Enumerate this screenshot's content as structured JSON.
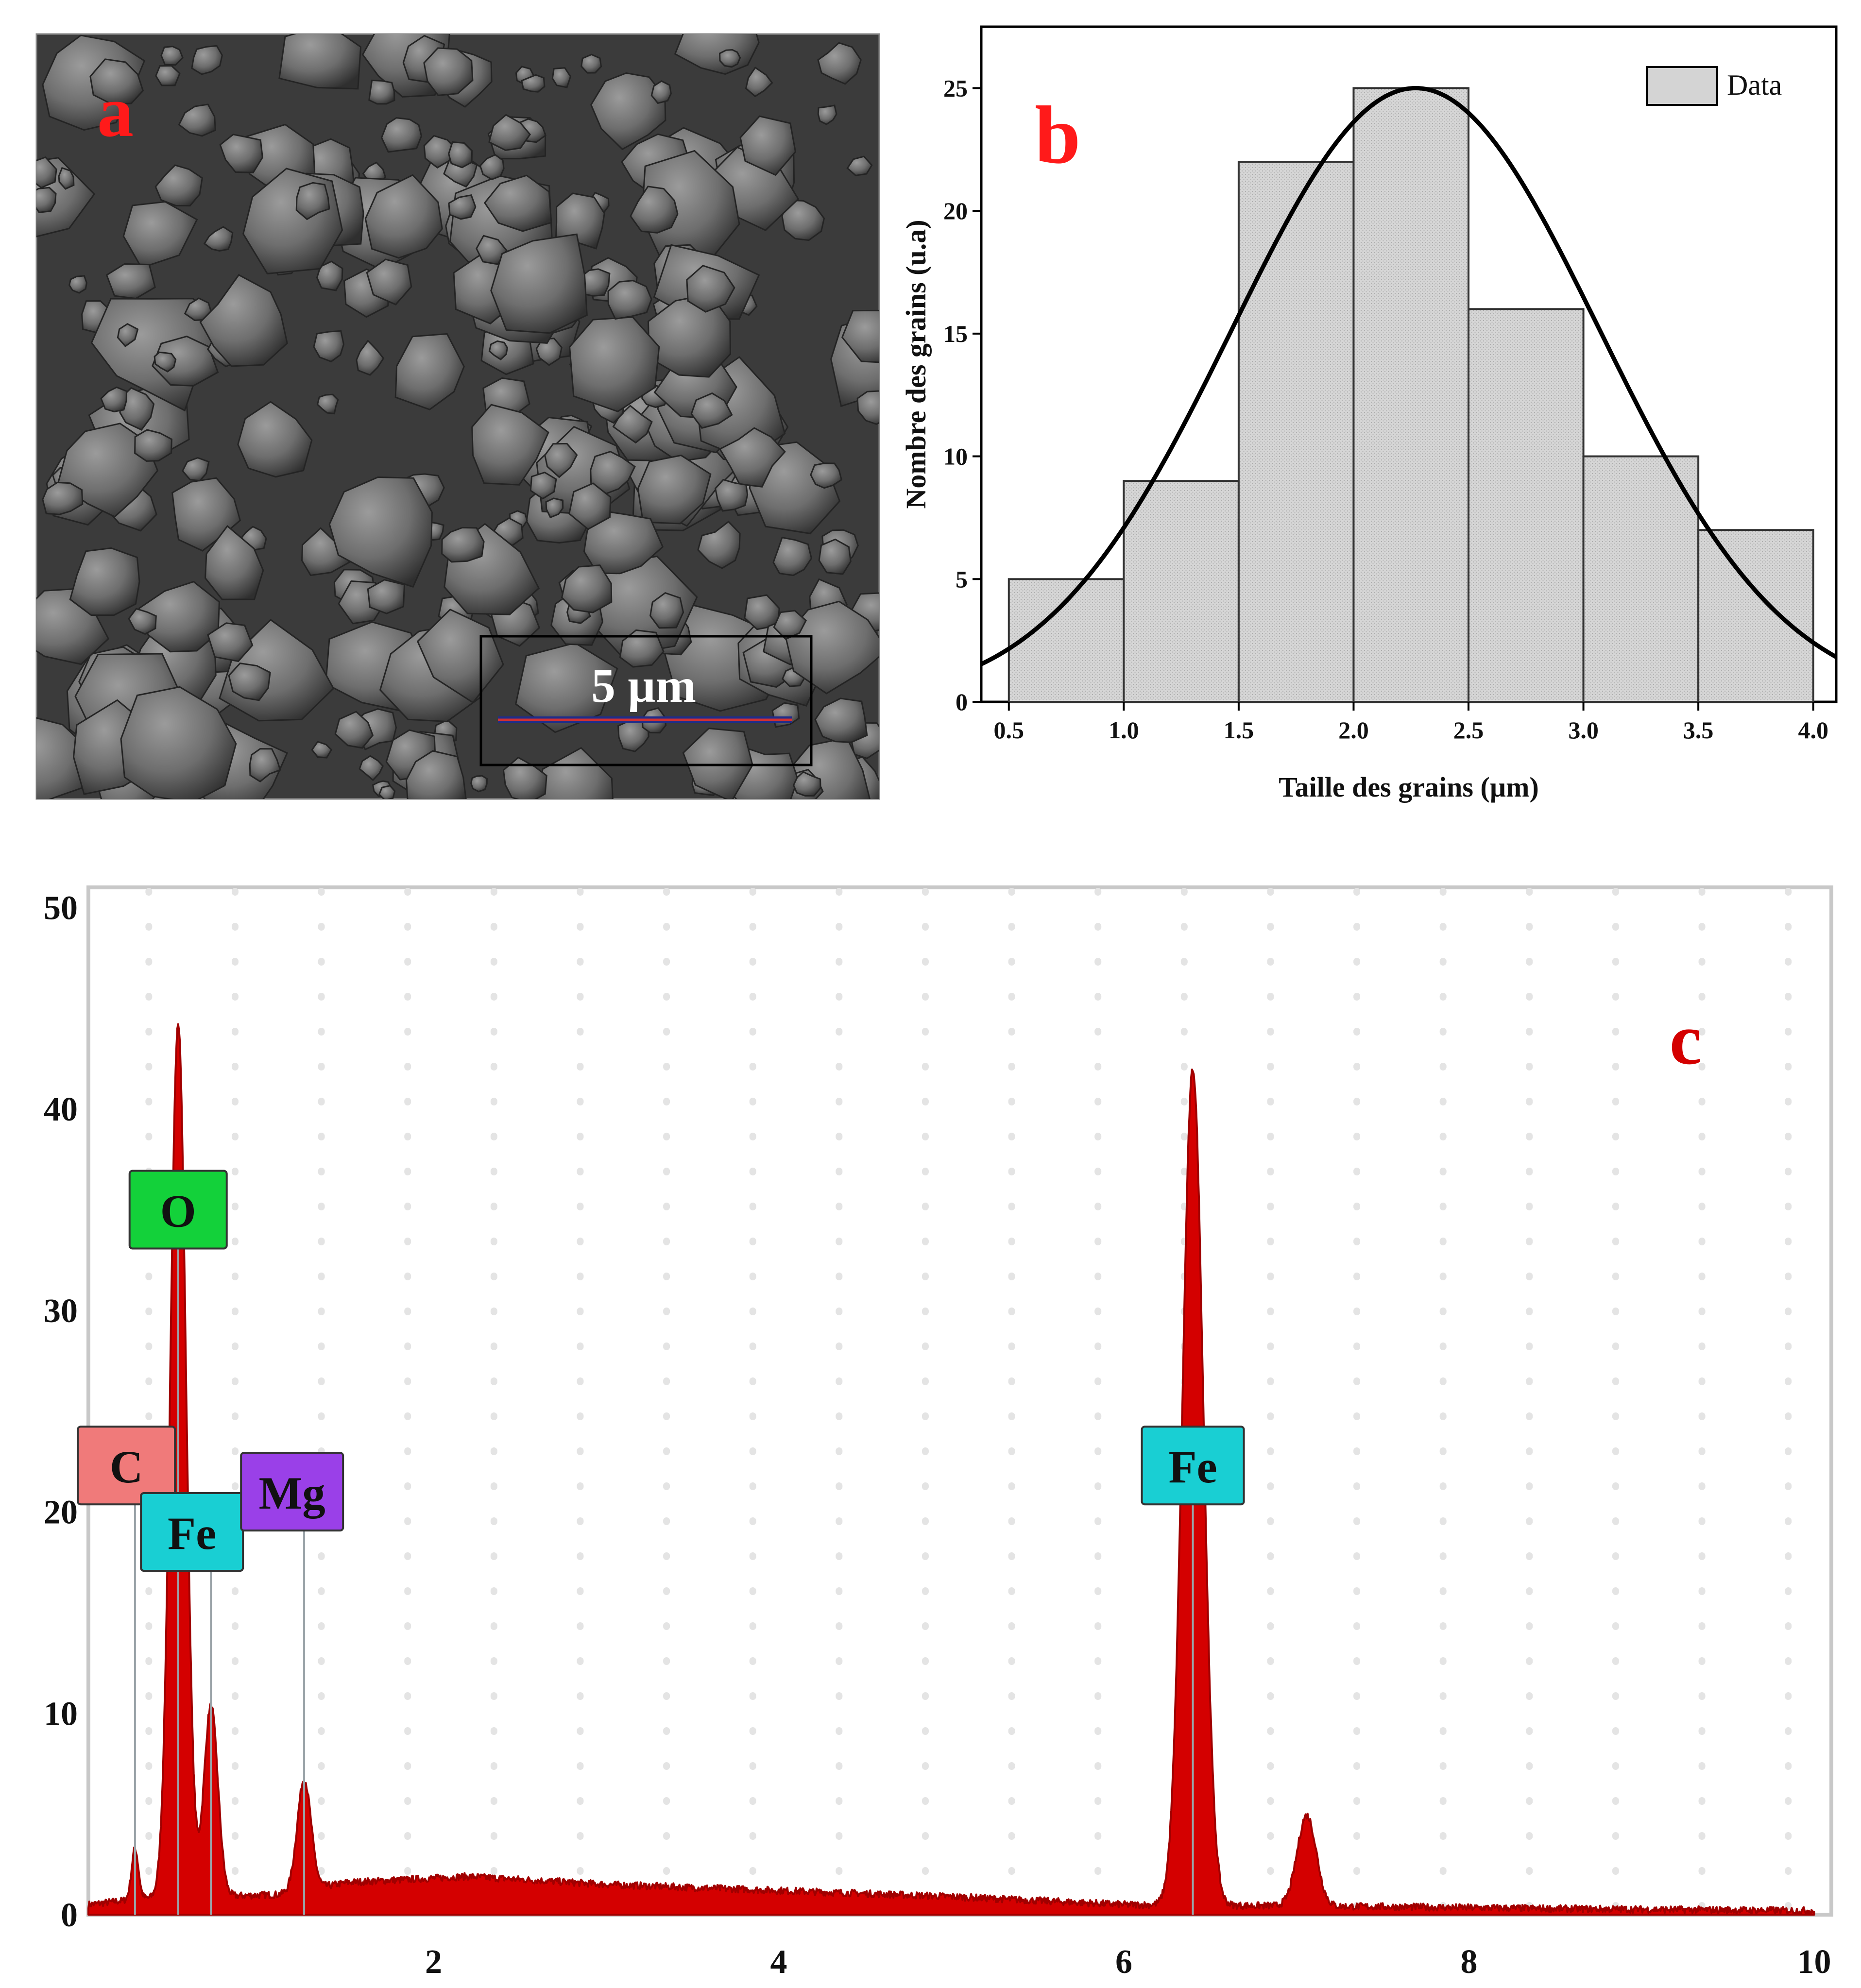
{
  "panels": {
    "a": {
      "label": "a",
      "scale_bar_text": "5 µm",
      "image_kind": "SEM micrograph of agglomerated grains",
      "colors": {
        "label": "#ff1a1a",
        "scale_bar_line": "#1f2d8a",
        "scale_bar_line2": "#d23030"
      }
    },
    "b": {
      "label": "b",
      "label_color": "#ff1a1a"
    },
    "c": {
      "label": "c",
      "label_color": "#d40000"
    }
  },
  "chart_data": [
    {
      "id": "grain-size-histogram",
      "type": "bar",
      "title": "",
      "xlabel": "Taille des grains (µm)",
      "ylabel": "Nombre des grains (u.a)",
      "bins": [
        [
          0.5,
          1.0
        ],
        [
          1.0,
          1.5
        ],
        [
          1.5,
          2.0
        ],
        [
          2.0,
          2.5
        ],
        [
          2.5,
          3.0
        ],
        [
          3.0,
          3.5
        ],
        [
          3.5,
          4.0
        ]
      ],
      "values": [
        5,
        9,
        22,
        25,
        16,
        10,
        7
      ],
      "xticks": [
        "0.5",
        "1.0",
        "1.5",
        "2.0",
        "2.5",
        "3.0",
        "3.5",
        "4.0"
      ],
      "yticks": [
        "0",
        "5",
        "10",
        "15",
        "20",
        "25"
      ],
      "xlim": [
        0.38,
        4.1
      ],
      "ylim": [
        0,
        27.5
      ],
      "legend": {
        "position": "top-right",
        "entries": [
          "Data"
        ]
      },
      "fit_curve": {
        "type": "gaussian",
        "mean": 2.27,
        "sigma": 0.8,
        "peak": 25
      },
      "grid": false,
      "colors": {
        "bar_fill": "#d4d4d4",
        "bar_stroke": "#333333",
        "curve": "#000000"
      }
    },
    {
      "id": "eds-spectrum",
      "type": "line",
      "title": "",
      "xlabel": "",
      "ylabel": "",
      "xlim": [
        0,
        10.1
      ],
      "ylim": [
        0,
        51
      ],
      "xticks": [
        "2",
        "4",
        "6",
        "8",
        "10"
      ],
      "yticks": [
        "0",
        "10",
        "20",
        "30",
        "40",
        "50"
      ],
      "grid": true,
      "baseline": [
        [
          0.0,
          0.5
        ],
        [
          0.3,
          0.8
        ],
        [
          1.1,
          1.0
        ],
        [
          1.5,
          1.6
        ],
        [
          2.2,
          1.9
        ],
        [
          3.0,
          1.5
        ],
        [
          4.0,
          1.2
        ],
        [
          5.0,
          0.9
        ],
        [
          6.0,
          0.5
        ],
        [
          7.5,
          0.4
        ],
        [
          8.5,
          0.3
        ],
        [
          10.0,
          0.2
        ]
      ],
      "peaks": [
        {
          "x": 0.27,
          "height": 2.5,
          "width": 0.02
        },
        {
          "x": 0.52,
          "height": 43.5,
          "width": 0.045
        },
        {
          "x": 0.71,
          "height": 9.5,
          "width": 0.04
        },
        {
          "x": 1.25,
          "height": 5.5,
          "width": 0.04
        },
        {
          "x": 6.4,
          "height": 41.5,
          "width": 0.06
        },
        {
          "x": 7.06,
          "height": 4.5,
          "width": 0.055
        }
      ],
      "element_labels": [
        {
          "text": "O",
          "x": 0.52,
          "y": 35,
          "line_x": 0.52,
          "color": "#13d13a"
        },
        {
          "text": "C",
          "x": 0.22,
          "y": 22.3,
          "line_x": 0.27,
          "color": "#f07a7a"
        },
        {
          "text": "Fe",
          "x": 0.6,
          "y": 19,
          "line_x": 0.71,
          "color": "#19cfd3"
        },
        {
          "text": "Mg",
          "x": 1.18,
          "y": 21,
          "line_x": 1.25,
          "color": "#9a40e8"
        },
        {
          "text": "Fe",
          "x": 6.4,
          "y": 22.3,
          "line_x": 6.4,
          "color": "#19cfd3"
        }
      ],
      "colors": {
        "fill": "#d40000",
        "stroke": "#a00000",
        "grid": "#e4e4e4",
        "frame": "#c8c8c8"
      }
    }
  ]
}
